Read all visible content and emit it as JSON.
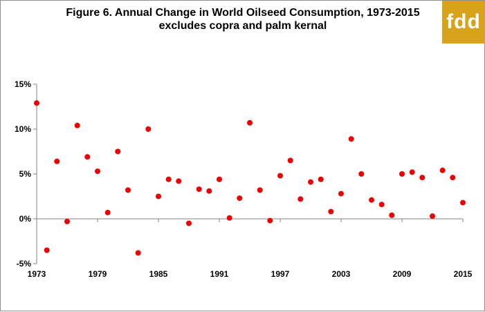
{
  "chart_data": {
    "type": "scatter",
    "title": "Figure 6. Annual Change in World Oilseed  Consumption, 1973-2015",
    "subtitle": "excludes copra and palm kernal",
    "logo_text": "fdd",
    "colors": {
      "marker": "#ee0000",
      "logo_bg": "#d9a21b",
      "axis": "#808080"
    },
    "ylim": [
      -5,
      15
    ],
    "xlim": [
      1973,
      2015
    ],
    "y_ticks": [
      -5,
      0,
      5,
      10,
      15
    ],
    "y_tick_labels": [
      "-5%",
      "0%",
      "5%",
      "10%",
      "15%"
    ],
    "x_ticks": [
      1973,
      1979,
      1985,
      1991,
      1997,
      2003,
      2009,
      2015
    ],
    "x_tick_labels": [
      "1973",
      "1979",
      "1985",
      "1991",
      "1997",
      "2003",
      "2009",
      "2015"
    ],
    "grid": false,
    "legend": "none",
    "x": [
      1973,
      1974,
      1975,
      1976,
      1977,
      1978,
      1979,
      1980,
      1981,
      1982,
      1983,
      1984,
      1985,
      1986,
      1987,
      1988,
      1989,
      1990,
      1991,
      1992,
      1993,
      1994,
      1995,
      1996,
      1997,
      1998,
      1999,
      2000,
      2001,
      2002,
      2003,
      2004,
      2005,
      2006,
      2007,
      2008,
      2009,
      2010,
      2011,
      2012,
      2013,
      2014,
      2015
    ],
    "values": [
      12.9,
      -3.5,
      6.4,
      -0.3,
      10.4,
      6.9,
      5.3,
      0.7,
      7.5,
      3.2,
      -3.8,
      10.0,
      2.5,
      4.4,
      4.2,
      -0.5,
      3.3,
      3.1,
      4.4,
      0.1,
      2.3,
      10.7,
      3.2,
      -0.2,
      4.8,
      6.5,
      2.2,
      4.1,
      4.4,
      0.8,
      2.8,
      8.9,
      5.0,
      2.1,
      1.6,
      0.4,
      5.0,
      5.2,
      4.6,
      0.3,
      5.4,
      4.6,
      1.8
    ]
  }
}
